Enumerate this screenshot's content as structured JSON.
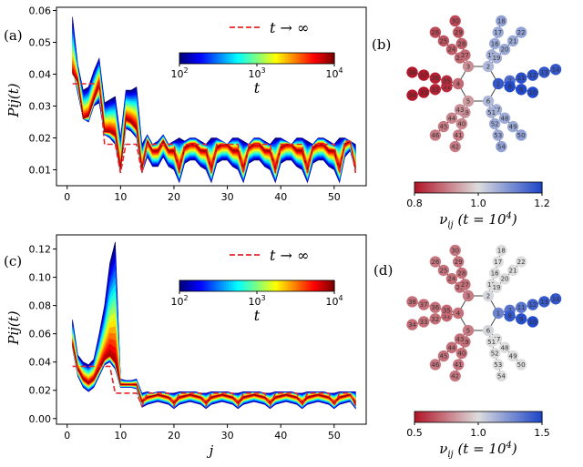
{
  "panels": {
    "a": "(a)",
    "b": "(b)",
    "c": "(c)",
    "d": "(d)"
  },
  "chart_data": [
    {
      "panel": "(a)",
      "type": "area",
      "xlabel": "",
      "ylabel": "P_ij(t)",
      "ylabel_text": "Pij(t)",
      "xlim": [
        -2,
        56
      ],
      "ylim": [
        0.005,
        0.061
      ],
      "x_ticks": [
        0,
        10,
        20,
        30,
        40,
        50
      ],
      "y_ticks": [
        0.01,
        0.02,
        0.03,
        0.04,
        0.05,
        0.06
      ],
      "y_tick_labels": [
        "0.01",
        "0.02",
        "0.03",
        "0.04",
        "0.05",
        "0.06"
      ],
      "colorbar": {
        "label": "t",
        "min_label": "10^2",
        "max_label": "10^4",
        "min_base": "10",
        "min_exp": "2",
        "mid_base": "10",
        "mid_exp": "3",
        "max_base": "10",
        "max_exp": "4",
        "scale": "log",
        "colormap": "jet"
      },
      "legend": {
        "label": "t → ∞",
        "style": "dashed",
        "color": "#e8262a"
      },
      "j": [
        1,
        2,
        3,
        4,
        5,
        6,
        7,
        8,
        9,
        10,
        11,
        12,
        13,
        14,
        15,
        16,
        17,
        18,
        19,
        20,
        21,
        22,
        23,
        24,
        25,
        26,
        27,
        28,
        29,
        30,
        31,
        32,
        33,
        34,
        35,
        36,
        37,
        38,
        39,
        40,
        41,
        42,
        43,
        44,
        45,
        46,
        47,
        48,
        49,
        50,
        51,
        52,
        53,
        54
      ],
      "early_max": [
        0.058,
        0.043,
        0.035,
        0.036,
        0.041,
        0.045,
        0.031,
        0.032,
        0.033,
        0.02,
        0.035,
        0.035,
        0.036,
        0.018,
        0.021,
        0.018,
        0.019,
        0.021,
        0.018,
        0.019,
        0.02,
        0.019,
        0.02,
        0.02,
        0.019,
        0.018,
        0.02,
        0.02,
        0.019,
        0.018,
        0.02,
        0.02,
        0.019,
        0.018,
        0.02,
        0.02,
        0.019,
        0.018,
        0.02,
        0.02,
        0.019,
        0.018,
        0.02,
        0.02,
        0.019,
        0.018,
        0.02,
        0.02,
        0.019,
        0.018,
        0.02,
        0.02,
        0.019,
        0.018
      ],
      "early_min": [
        0.042,
        0.034,
        0.026,
        0.025,
        0.03,
        0.031,
        0.021,
        0.02,
        0.018,
        0.009,
        0.023,
        0.022,
        0.02,
        0.009,
        0.014,
        0.011,
        0.011,
        0.014,
        0.011,
        0.01,
        0.006,
        0.012,
        0.013,
        0.013,
        0.011,
        0.01,
        0.006,
        0.012,
        0.013,
        0.013,
        0.011,
        0.01,
        0.006,
        0.012,
        0.013,
        0.013,
        0.011,
        0.01,
        0.006,
        0.012,
        0.013,
        0.013,
        0.011,
        0.01,
        0.006,
        0.012,
        0.013,
        0.013,
        0.011,
        0.01,
        0.006,
        0.014,
        0.016,
        0.01
      ],
      "late": [
        0.04,
        0.038,
        0.026,
        0.027,
        0.032,
        0.037,
        0.022,
        0.022,
        0.021,
        0.01,
        0.026,
        0.025,
        0.023,
        0.01,
        0.019,
        0.016,
        0.016,
        0.019,
        0.016,
        0.016,
        0.01,
        0.017,
        0.018,
        0.018,
        0.016,
        0.016,
        0.01,
        0.017,
        0.018,
        0.018,
        0.016,
        0.016,
        0.01,
        0.017,
        0.018,
        0.018,
        0.016,
        0.016,
        0.01,
        0.017,
        0.018,
        0.018,
        0.016,
        0.016,
        0.01,
        0.017,
        0.018,
        0.018,
        0.016,
        0.016,
        0.01,
        0.018,
        0.019,
        0.01
      ],
      "asymptote": [
        0.037,
        0.037,
        0.037,
        0.037,
        0.037,
        0.037,
        0.018,
        0.018,
        0.018,
        0.009,
        0.018,
        0.018,
        0.018,
        0.009,
        0.018,
        0.018,
        0.018,
        0.018,
        0.018,
        0.018,
        0.009,
        0.018,
        0.018,
        0.018,
        0.018,
        0.018,
        0.009,
        0.018,
        0.018,
        0.018,
        0.018,
        0.018,
        0.009,
        0.018,
        0.018,
        0.018,
        0.018,
        0.018,
        0.009,
        0.018,
        0.018,
        0.018,
        0.018,
        0.018,
        0.009,
        0.018,
        0.018,
        0.018,
        0.018,
        0.018,
        0.009,
        0.019,
        0.019,
        0.009
      ]
    },
    {
      "panel": "(c)",
      "type": "area",
      "xlabel": "j",
      "ylabel": "P_ij(t)",
      "ylabel_text": "Pij(t)",
      "xlim": [
        -2,
        56
      ],
      "ylim": [
        -0.004,
        0.13
      ],
      "x_ticks": [
        0,
        10,
        20,
        30,
        40,
        50
      ],
      "y_ticks": [
        0.0,
        0.02,
        0.04,
        0.06,
        0.08,
        0.1,
        0.12
      ],
      "y_tick_labels": [
        "0.00",
        "0.02",
        "0.04",
        "0.06",
        "0.08",
        "0.10",
        "0.12"
      ],
      "colorbar": {
        "label": "t",
        "min_label": "10^2",
        "max_label": "10^4",
        "min_base": "10",
        "min_exp": "2",
        "mid_base": "10",
        "mid_exp": "3",
        "max_base": "10",
        "max_exp": "4",
        "scale": "log",
        "colormap": "jet"
      },
      "legend": {
        "label": "t → ∞",
        "style": "dashed",
        "color": "#e8262a"
      },
      "j": [
        1,
        2,
        3,
        4,
        5,
        6,
        7,
        8,
        9,
        10,
        11,
        12,
        13,
        14,
        15,
        16,
        17,
        18,
        19,
        20,
        21,
        22,
        23,
        24,
        25,
        26,
        27,
        28,
        29,
        30,
        31,
        32,
        33,
        34,
        35,
        36,
        37,
        38,
        39,
        40,
        41,
        42,
        43,
        44,
        45,
        46,
        47,
        48,
        49,
        50,
        51,
        52,
        53,
        54
      ],
      "early_max": [
        0.07,
        0.045,
        0.04,
        0.038,
        0.042,
        0.06,
        0.08,
        0.11,
        0.125,
        0.028,
        0.027,
        0.027,
        0.028,
        0.018,
        0.019,
        0.018,
        0.019,
        0.019,
        0.018,
        0.018,
        0.019,
        0.019,
        0.019,
        0.019,
        0.018,
        0.018,
        0.019,
        0.019,
        0.019,
        0.019,
        0.018,
        0.018,
        0.019,
        0.019,
        0.019,
        0.019,
        0.018,
        0.018,
        0.019,
        0.019,
        0.019,
        0.019,
        0.018,
        0.018,
        0.019,
        0.019,
        0.019,
        0.019,
        0.018,
        0.018,
        0.019,
        0.019,
        0.019,
        0.019
      ],
      "early_min": [
        0.05,
        0.03,
        0.022,
        0.019,
        0.022,
        0.03,
        0.038,
        0.04,
        0.035,
        0.022,
        0.022,
        0.022,
        0.021,
        0.008,
        0.01,
        0.011,
        0.012,
        0.011,
        0.01,
        0.007,
        0.01,
        0.011,
        0.012,
        0.011,
        0.01,
        0.007,
        0.01,
        0.011,
        0.012,
        0.011,
        0.01,
        0.007,
        0.01,
        0.011,
        0.012,
        0.011,
        0.01,
        0.007,
        0.01,
        0.011,
        0.012,
        0.011,
        0.01,
        0.007,
        0.01,
        0.011,
        0.012,
        0.011,
        0.01,
        0.007,
        0.01,
        0.011,
        0.012,
        0.007
      ],
      "late": [
        0.052,
        0.035,
        0.028,
        0.025,
        0.028,
        0.035,
        0.042,
        0.045,
        0.04,
        0.024,
        0.024,
        0.024,
        0.024,
        0.012,
        0.015,
        0.016,
        0.017,
        0.016,
        0.015,
        0.011,
        0.015,
        0.016,
        0.017,
        0.016,
        0.015,
        0.011,
        0.015,
        0.016,
        0.017,
        0.016,
        0.015,
        0.011,
        0.015,
        0.016,
        0.017,
        0.016,
        0.015,
        0.011,
        0.015,
        0.016,
        0.017,
        0.016,
        0.015,
        0.011,
        0.015,
        0.016,
        0.017,
        0.016,
        0.015,
        0.011,
        0.015,
        0.016,
        0.017,
        0.011
      ],
      "asymptote": [
        0.037,
        0.037,
        0.037,
        0.037,
        0.037,
        0.037,
        0.037,
        0.037,
        0.018,
        0.018,
        0.018,
        0.018,
        0.018,
        0.009,
        0.018,
        0.018,
        0.018,
        0.018,
        0.018,
        0.009,
        0.018,
        0.018,
        0.018,
        0.018,
        0.018,
        0.009,
        0.018,
        0.018,
        0.018,
        0.018,
        0.018,
        0.009,
        0.018,
        0.018,
        0.018,
        0.018,
        0.018,
        0.009,
        0.018,
        0.018,
        0.018,
        0.018,
        0.018,
        0.009,
        0.018,
        0.018,
        0.018,
        0.018,
        0.018,
        0.009,
        0.018,
        0.018,
        0.018,
        0.009
      ]
    }
  ],
  "networks": [
    {
      "panel": "(b)",
      "colorbar": {
        "label": "ν_ij (t = 10^4)",
        "label_main": "ν",
        "label_sub": "ij",
        "label_rest": "(t = 10",
        "label_exp": "4",
        "label_close": ")",
        "ticks": [
          "0.8",
          "1.0",
          "1.2"
        ],
        "vmin": 0.8,
        "vmax": 1.2,
        "colormap": "coolwarm_r"
      },
      "values": {
        "1": 1.18,
        "2": 1.05,
        "3": 0.92,
        "4": 0.88,
        "5": 0.93,
        "6": 1.05,
        "7": 1.15,
        "8": 1.2,
        "9": 1.2,
        "10": 1.2,
        "11": 1.19,
        "12": 1.19,
        "13": 1.18,
        "14": 1.18,
        "15": 1.06,
        "16": 1.07,
        "17": 1.07,
        "18": 1.08,
        "19": 1.06,
        "20": 1.07,
        "21": 1.07,
        "22": 1.08,
        "23": 0.88,
        "24": 0.87,
        "25": 0.86,
        "26": 0.85,
        "27": 0.88,
        "28": 0.87,
        "29": 0.86,
        "30": 0.85,
        "31": 0.82,
        "32": 0.81,
        "33": 0.8,
        "34": 0.8,
        "35": 0.82,
        "36": 0.81,
        "37": 0.8,
        "38": 0.8,
        "39": 0.92,
        "40": 0.91,
        "41": 0.9,
        "42": 0.9,
        "43": 0.92,
        "44": 0.91,
        "45": 0.9,
        "46": 0.9,
        "47": 1.06,
        "48": 1.07,
        "49": 1.07,
        "50": 1.08,
        "51": 1.06,
        "52": 1.07,
        "53": 1.07,
        "54": 1.08
      }
    },
    {
      "panel": "(d)",
      "colorbar": {
        "label": "ν_ij (t = 10^4)",
        "label_main": "ν",
        "label_sub": "ij",
        "label_rest": "(t = 10",
        "label_exp": "4",
        "label_close": ")",
        "ticks": [
          "0.5",
          "1.0",
          "1.5"
        ],
        "vmin": 0.5,
        "vmax": 1.5,
        "colormap": "coolwarm_r"
      },
      "values": {
        "1": 1.3,
        "2": 1.02,
        "3": 0.75,
        "4": 0.72,
        "5": 0.75,
        "6": 1.02,
        "7": 1.35,
        "8": 1.45,
        "9": 1.48,
        "10": 1.5,
        "11": 1.35,
        "12": 1.42,
        "13": 1.45,
        "14": 1.45,
        "15": 1.0,
        "16": 1.0,
        "17": 1.0,
        "18": 1.0,
        "19": 1.0,
        "20": 1.0,
        "21": 1.0,
        "22": 1.0,
        "23": 0.72,
        "24": 0.72,
        "25": 0.73,
        "26": 0.74,
        "27": 0.72,
        "28": 0.72,
        "29": 0.73,
        "30": 0.74,
        "31": 0.7,
        "32": 0.72,
        "33": 0.72,
        "34": 0.72,
        "35": 0.7,
        "36": 0.72,
        "37": 0.72,
        "38": 0.72,
        "39": 0.72,
        "40": 0.72,
        "41": 0.73,
        "42": 0.74,
        "43": 0.72,
        "44": 0.72,
        "45": 0.73,
        "46": 0.74,
        "47": 1.0,
        "48": 1.0,
        "49": 1.0,
        "50": 1.0,
        "51": 1.0,
        "52": 1.0,
        "53": 1.0,
        "54": 1.0
      }
    }
  ]
}
